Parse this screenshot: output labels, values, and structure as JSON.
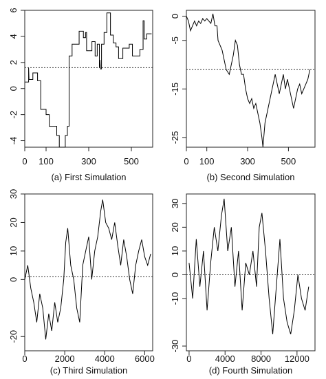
{
  "chart_data": [
    {
      "type": "line",
      "caption": "(a) First Simulation",
      "xlim": [
        0,
        600
      ],
      "ylim": [
        -4.5,
        6
      ],
      "xticks": [
        0,
        100,
        300,
        500
      ],
      "yticks": [
        -4,
        -2,
        0,
        2,
        4,
        6
      ],
      "reference_line": 1.6,
      "series": [
        {
          "step": true,
          "points": [
            [
              0,
              0.5
            ],
            [
              18,
              0.5
            ],
            [
              18,
              1.6
            ],
            [
              20,
              0.7
            ],
            [
              38,
              0.7
            ],
            [
              38,
              1.2
            ],
            [
              60,
              1.2
            ],
            [
              60,
              0.6
            ],
            [
              75,
              0.6
            ],
            [
              75,
              -1.6
            ],
            [
              100,
              -1.6
            ],
            [
              100,
              -2.0
            ],
            [
              115,
              -2.0
            ],
            [
              115,
              -2.9
            ],
            [
              150,
              -2.9
            ],
            [
              150,
              -3.6
            ],
            [
              162,
              -3.6
            ],
            [
              162,
              -4.5
            ],
            [
              190,
              -4.5
            ],
            [
              190,
              -3.6
            ],
            [
              200,
              -3.6
            ],
            [
              200,
              -2.9
            ],
            [
              208,
              -2.9
            ],
            [
              208,
              2.5
            ],
            [
              222,
              2.5
            ],
            [
              222,
              3.4
            ],
            [
              255,
              3.4
            ],
            [
              255,
              4.4
            ],
            [
              275,
              4.4
            ],
            [
              275,
              3.9
            ],
            [
              285,
              3.9
            ],
            [
              285,
              4.3
            ],
            [
              290,
              4.3
            ],
            [
              290,
              2.9
            ],
            [
              315,
              2.9
            ],
            [
              315,
              3.6
            ],
            [
              330,
              3.6
            ],
            [
              330,
              2.5
            ],
            [
              340,
              2.5
            ],
            [
              340,
              3.4
            ],
            [
              350,
              3.4
            ],
            [
              350,
              1.6
            ],
            [
              352,
              2.2
            ],
            [
              355,
              1.5
            ],
            [
              360,
              1.5
            ],
            [
              360,
              3.4
            ],
            [
              372,
              3.4
            ],
            [
              372,
              4.3
            ],
            [
              385,
              4.3
            ],
            [
              385,
              5.8
            ],
            [
              402,
              5.8
            ],
            [
              402,
              4.1
            ],
            [
              415,
              4.1
            ],
            [
              415,
              3.5
            ],
            [
              428,
              3.5
            ],
            [
              428,
              3.2
            ],
            [
              440,
              3.2
            ],
            [
              440,
              2.3
            ],
            [
              460,
              2.3
            ],
            [
              460,
              3.1
            ],
            [
              490,
              3.1
            ],
            [
              490,
              3.4
            ],
            [
              505,
              3.4
            ],
            [
              505,
              2.5
            ],
            [
              540,
              2.5
            ],
            [
              540,
              3.0
            ],
            [
              555,
              3.0
            ],
            [
              555,
              5.2
            ],
            [
              560,
              5.2
            ],
            [
              560,
              3.8
            ],
            [
              572,
              3.8
            ],
            [
              572,
              4.2
            ],
            [
              595,
              4.2
            ]
          ]
        }
      ]
    },
    {
      "type": "line",
      "caption": "(b) Second Simulation",
      "xlim": [
        0,
        630
      ],
      "ylim": [
        -27,
        1.2
      ],
      "xticks": [
        0,
        100,
        300,
        500
      ],
      "yticks": [
        0,
        -5,
        -15,
        -25
      ],
      "reference_line": -11,
      "series": [
        {
          "step": false,
          "points": [
            [
              0,
              0
            ],
            [
              10,
              -1
            ],
            [
              20,
              -3
            ],
            [
              30,
              -2
            ],
            [
              40,
              -1
            ],
            [
              50,
              -2
            ],
            [
              60,
              -1
            ],
            [
              70,
              -1.5
            ],
            [
              80,
              -0.5
            ],
            [
              90,
              -1
            ],
            [
              100,
              -0.5
            ],
            [
              110,
              -1
            ],
            [
              120,
              -1.5
            ],
            [
              130,
              0.5
            ],
            [
              140,
              -2
            ],
            [
              150,
              -2
            ],
            [
              155,
              -5
            ],
            [
              165,
              -6
            ],
            [
              175,
              -7
            ],
            [
              185,
              -9
            ],
            [
              195,
              -11
            ],
            [
              210,
              -12
            ],
            [
              220,
              -10
            ],
            [
              230,
              -8
            ],
            [
              240,
              -5
            ],
            [
              250,
              -6
            ],
            [
              260,
              -10
            ],
            [
              270,
              -12
            ],
            [
              280,
              -12
            ],
            [
              290,
              -15
            ],
            [
              300,
              -17
            ],
            [
              310,
              -18
            ],
            [
              320,
              -17
            ],
            [
              330,
              -19
            ],
            [
              340,
              -18
            ],
            [
              350,
              -20
            ],
            [
              360,
              -22
            ],
            [
              370,
              -25
            ],
            [
              375,
              -27
            ],
            [
              385,
              -22
            ],
            [
              395,
              -20
            ],
            [
              405,
              -18
            ],
            [
              415,
              -16
            ],
            [
              425,
              -14
            ],
            [
              435,
              -12
            ],
            [
              445,
              -14
            ],
            [
              455,
              -16
            ],
            [
              465,
              -14
            ],
            [
              475,
              -12
            ],
            [
              485,
              -15
            ],
            [
              495,
              -13
            ],
            [
              505,
              -15
            ],
            [
              515,
              -17
            ],
            [
              525,
              -19
            ],
            [
              535,
              -17
            ],
            [
              545,
              -15
            ],
            [
              555,
              -14
            ],
            [
              565,
              -16
            ],
            [
              575,
              -15
            ],
            [
              585,
              -14
            ],
            [
              595,
              -13
            ],
            [
              605,
              -11
            ]
          ]
        }
      ]
    },
    {
      "type": "line",
      "caption": "(c) Third Simulation",
      "xlim": [
        0,
        6400
      ],
      "ylim": [
        -25,
        30
      ],
      "xticks": [
        0,
        2000,
        4000,
        6000
      ],
      "yticks": [
        30,
        20,
        10,
        0,
        -20
      ],
      "reference_line": 1,
      "series": [
        {
          "step": false,
          "points": [
            [
              0,
              0
            ],
            [
              150,
              5
            ],
            [
              300,
              -3
            ],
            [
              450,
              -8
            ],
            [
              600,
              -15
            ],
            [
              750,
              -5
            ],
            [
              900,
              -10
            ],
            [
              1050,
              -21
            ],
            [
              1200,
              -12
            ],
            [
              1350,
              -18
            ],
            [
              1500,
              -8
            ],
            [
              1650,
              -15
            ],
            [
              1800,
              -10
            ],
            [
              1950,
              0
            ],
            [
              2050,
              13
            ],
            [
              2150,
              18
            ],
            [
              2300,
              5
            ],
            [
              2450,
              0
            ],
            [
              2600,
              -10
            ],
            [
              2750,
              -15
            ],
            [
              2900,
              5
            ],
            [
              3050,
              10
            ],
            [
              3200,
              15
            ],
            [
              3350,
              0
            ],
            [
              3500,
              10
            ],
            [
              3650,
              15
            ],
            [
              3800,
              24
            ],
            [
              3900,
              28
            ],
            [
              4050,
              20
            ],
            [
              4200,
              18
            ],
            [
              4350,
              14
            ],
            [
              4500,
              20
            ],
            [
              4650,
              12
            ],
            [
              4800,
              5
            ],
            [
              4950,
              14
            ],
            [
              5100,
              8
            ],
            [
              5250,
              0
            ],
            [
              5400,
              -5
            ],
            [
              5550,
              5
            ],
            [
              5700,
              10
            ],
            [
              5850,
              14
            ],
            [
              6000,
              8
            ],
            [
              6150,
              5
            ],
            [
              6300,
              9
            ]
          ]
        }
      ]
    },
    {
      "type": "line",
      "caption": "(d) Fourth Simulation",
      "xlim": [
        -300,
        14000
      ],
      "ylim": [
        -32,
        34
      ],
      "xticks": [
        0,
        4000,
        8000,
        12000
      ],
      "yticks": [
        30,
        20,
        10,
        0,
        -10,
        -30
      ],
      "reference_line": 0,
      "series": [
        {
          "step": false,
          "points": [
            [
              0,
              5
            ],
            [
              400,
              -10
            ],
            [
              800,
              15
            ],
            [
              1200,
              -5
            ],
            [
              1600,
              10
            ],
            [
              2000,
              -15
            ],
            [
              2400,
              5
            ],
            [
              2800,
              20
            ],
            [
              3200,
              10
            ],
            [
              3600,
              25
            ],
            [
              3900,
              32
            ],
            [
              4300,
              10
            ],
            [
              4700,
              20
            ],
            [
              5100,
              -5
            ],
            [
              5500,
              10
            ],
            [
              5900,
              -15
            ],
            [
              6300,
              5
            ],
            [
              6700,
              0
            ],
            [
              7100,
              10
            ],
            [
              7500,
              -5
            ],
            [
              7800,
              20
            ],
            [
              8100,
              26
            ],
            [
              8500,
              10
            ],
            [
              8900,
              -10
            ],
            [
              9300,
              -25
            ],
            [
              9700,
              -5
            ],
            [
              10100,
              15
            ],
            [
              10500,
              -10
            ],
            [
              10900,
              -20
            ],
            [
              11300,
              -25
            ],
            [
              11700,
              -15
            ],
            [
              12100,
              0
            ],
            [
              12500,
              -10
            ],
            [
              12900,
              -15
            ],
            [
              13300,
              -5
            ]
          ]
        }
      ]
    }
  ]
}
